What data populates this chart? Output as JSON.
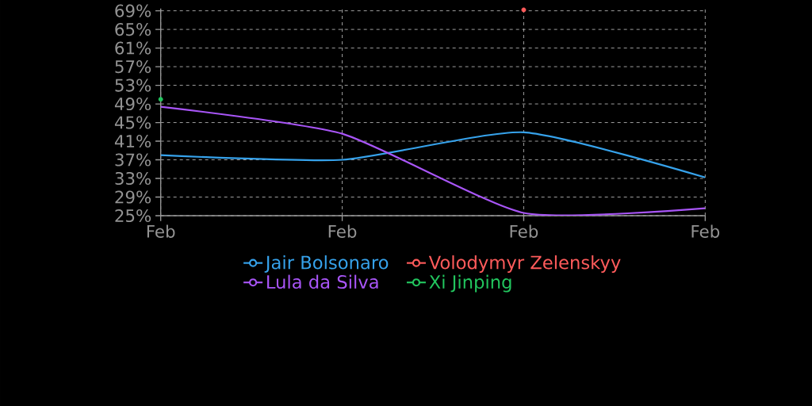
{
  "chart_data": {
    "type": "line",
    "categories": [
      "Feb",
      "Feb",
      "Feb",
      "Feb"
    ],
    "ylim": [
      25,
      69.5
    ],
    "yticks": [
      {
        "value": 25,
        "label": "25%"
      },
      {
        "value": 29,
        "label": "29%"
      },
      {
        "value": 33,
        "label": "33%"
      },
      {
        "value": 37,
        "label": "37%"
      },
      {
        "value": 41,
        "label": "41%"
      },
      {
        "value": 45,
        "label": "45%"
      },
      {
        "value": 49,
        "label": "49%"
      },
      {
        "value": 53,
        "label": "53%"
      },
      {
        "value": 57,
        "label": "57%"
      },
      {
        "value": 61,
        "label": "61%"
      },
      {
        "value": 65,
        "label": "65%"
      },
      {
        "value": 69,
        "label": "69%"
      }
    ],
    "series": [
      {
        "name": "Jair Bolsonaro",
        "color": "#36a2eb",
        "values": [
          38.0,
          37.0,
          42.9,
          33.2
        ]
      },
      {
        "name": "Volodymyr Zelenskyy",
        "color": "#ff5b5b",
        "values": [
          null,
          null,
          69.2,
          null
        ],
        "marker": "circle"
      },
      {
        "name": "Lula da Silva",
        "color": "#a855f7",
        "values": [
          48.4,
          42.6,
          25.6,
          26.6
        ]
      },
      {
        "name": "Xi Jinping",
        "color": "#22c55e",
        "values": [
          50.0,
          null,
          null,
          null
        ],
        "marker": "circle"
      }
    ],
    "grid": true,
    "legend": "bottom",
    "line_style": "solid"
  }
}
